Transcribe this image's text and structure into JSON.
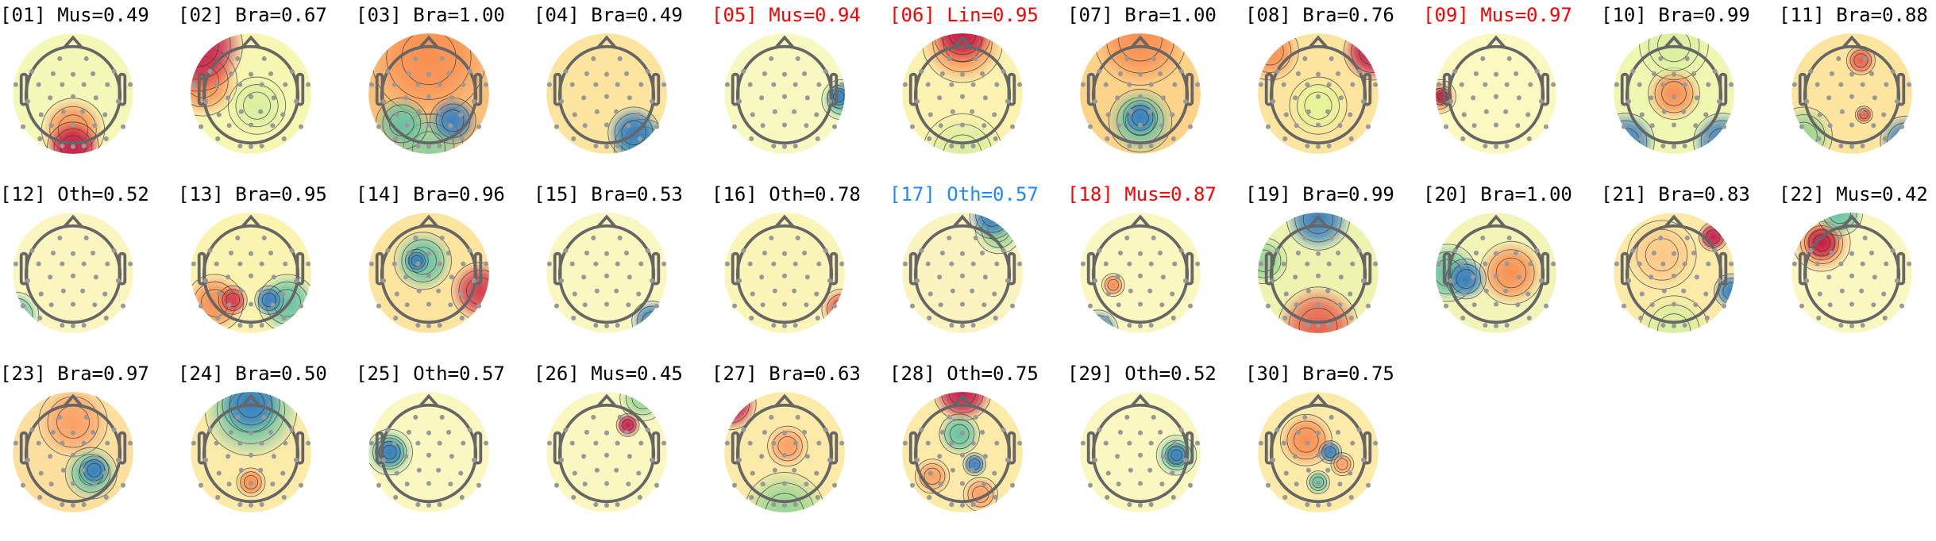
{
  "colors": {
    "default_title": "#000000",
    "flagged_red": "#ff0000",
    "flagged_blue": "#1e88ff"
  },
  "colormap": "Spectral_r",
  "components": [
    {
      "label": "[01] Mus=0.49",
      "color": "#000000"
    },
    {
      "label": "[02] Bra=0.67",
      "color": "#000000"
    },
    {
      "label": "[03] Bra=1.00",
      "color": "#000000"
    },
    {
      "label": "[04] Bra=0.49",
      "color": "#000000"
    },
    {
      "label": "[05] Mus=0.94",
      "color": "#ff0000"
    },
    {
      "label": "[06] Lin=0.95",
      "color": "#ff0000"
    },
    {
      "label": "[07] Bra=1.00",
      "color": "#000000"
    },
    {
      "label": "[08] Bra=0.76",
      "color": "#000000"
    },
    {
      "label": "[09] Mus=0.97",
      "color": "#ff0000"
    },
    {
      "label": "[10] Bra=0.99",
      "color": "#000000"
    },
    {
      "label": "[11] Bra=0.88",
      "color": "#000000"
    },
    {
      "label": "[12] Oth=0.52",
      "color": "#000000"
    },
    {
      "label": "[13] Bra=0.95",
      "color": "#000000"
    },
    {
      "label": "[14] Bra=0.96",
      "color": "#000000"
    },
    {
      "label": "[15] Bra=0.53",
      "color": "#000000"
    },
    {
      "label": "[16] Oth=0.78",
      "color": "#000000"
    },
    {
      "label": "[17] Oth=0.57",
      "color": "#1e88ff"
    },
    {
      "label": "[18] Mus=0.87",
      "color": "#ff0000"
    },
    {
      "label": "[19] Bra=0.99",
      "color": "#000000"
    },
    {
      "label": "[20] Bra=1.00",
      "color": "#000000"
    },
    {
      "label": "[21] Bra=0.83",
      "color": "#000000"
    },
    {
      "label": "[22] Mus=0.42",
      "color": "#000000"
    },
    {
      "label": "[23] Bra=0.97",
      "color": "#000000"
    },
    {
      "label": "[24] Bra=0.50",
      "color": "#000000"
    },
    {
      "label": "[25] Oth=0.57",
      "color": "#000000"
    },
    {
      "label": "[26] Mus=0.45",
      "color": "#000000"
    },
    {
      "label": "[27] Bra=0.63",
      "color": "#000000"
    },
    {
      "label": "[28] Oth=0.75",
      "color": "#000000"
    },
    {
      "label": "[29] Oth=0.52",
      "color": "#000000"
    },
    {
      "label": "[30] Bra=0.75",
      "color": "#000000"
    }
  ]
}
